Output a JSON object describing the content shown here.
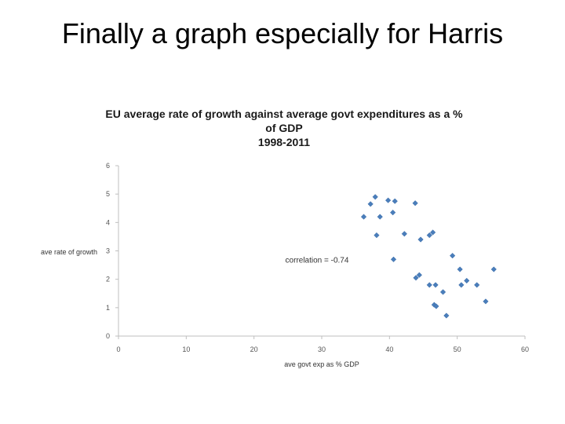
{
  "slide": {
    "title": "Finally a graph especially for Harris"
  },
  "chart_data": {
    "type": "scatter",
    "title_lines": [
      "EU average rate of growth against average govt expenditures as a %",
      "of GDP",
      "1998-2011"
    ],
    "xlabel": "ave govt exp as % GDP",
    "ylabel": "ave rate of growth",
    "xlim": [
      0,
      60
    ],
    "ylim": [
      0,
      6
    ],
    "x_ticks": [
      0,
      10,
      20,
      30,
      40,
      50,
      60
    ],
    "y_ticks": [
      0,
      1,
      2,
      3,
      4,
      5,
      6
    ],
    "grid": false,
    "legend": "none",
    "marker_color": "#4a7ebb",
    "annotations": [
      {
        "text": "correlation = -0.74",
        "x": 30,
        "y": 2.7
      }
    ],
    "points": [
      {
        "x": 36.2,
        "y": 4.2
      },
      {
        "x": 37.2,
        "y": 4.65
      },
      {
        "x": 37.9,
        "y": 4.9
      },
      {
        "x": 38.1,
        "y": 3.55
      },
      {
        "x": 38.6,
        "y": 4.2
      },
      {
        "x": 39.8,
        "y": 4.78
      },
      {
        "x": 40.5,
        "y": 4.35
      },
      {
        "x": 40.8,
        "y": 4.75
      },
      {
        "x": 40.6,
        "y": 2.7
      },
      {
        "x": 42.2,
        "y": 3.6
      },
      {
        "x": 43.8,
        "y": 4.68
      },
      {
        "x": 43.9,
        "y": 2.05
      },
      {
        "x": 44.6,
        "y": 3.4
      },
      {
        "x": 44.4,
        "y": 2.15
      },
      {
        "x": 45.9,
        "y": 3.55
      },
      {
        "x": 46.4,
        "y": 3.65
      },
      {
        "x": 45.9,
        "y": 1.8
      },
      {
        "x": 46.8,
        "y": 1.8
      },
      {
        "x": 46.6,
        "y": 1.1
      },
      {
        "x": 46.9,
        "y": 1.05
      },
      {
        "x": 47.9,
        "y": 1.55
      },
      {
        "x": 48.4,
        "y": 0.72
      },
      {
        "x": 49.3,
        "y": 2.83
      },
      {
        "x": 50.4,
        "y": 2.35
      },
      {
        "x": 50.6,
        "y": 1.8
      },
      {
        "x": 51.4,
        "y": 1.95
      },
      {
        "x": 52.9,
        "y": 1.8
      },
      {
        "x": 54.2,
        "y": 1.22
      },
      {
        "x": 55.4,
        "y": 2.35
      }
    ]
  }
}
